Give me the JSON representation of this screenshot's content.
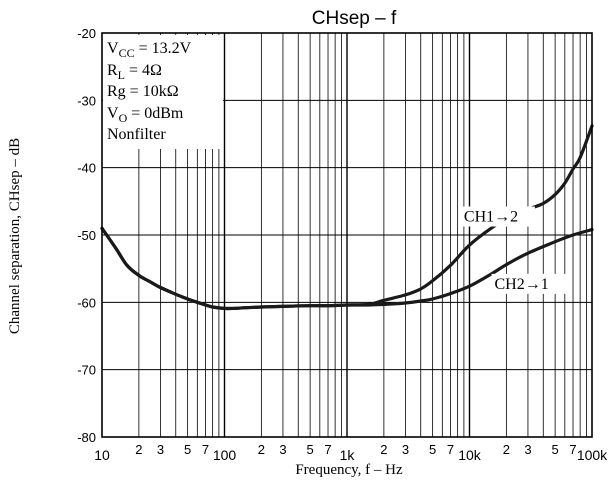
{
  "chart_data": {
    "type": "line",
    "title": "CHsep – f",
    "xlabel": "Frequency, f – Hz",
    "ylabel": "Channel separation, CHsep – dB",
    "x_scale": "log",
    "xlim": [
      10,
      100000
    ],
    "ylim": [
      -80,
      -20
    ],
    "grid": true,
    "x_tick_labels": [
      {
        "v": 10,
        "t": "10"
      },
      {
        "v": 20,
        "t": "2"
      },
      {
        "v": 30,
        "t": "3"
      },
      {
        "v": 50,
        "t": "5"
      },
      {
        "v": 70,
        "t": "7"
      },
      {
        "v": 100,
        "t": "100"
      },
      {
        "v": 200,
        "t": "2"
      },
      {
        "v": 300,
        "t": "3"
      },
      {
        "v": 500,
        "t": "5"
      },
      {
        "v": 700,
        "t": "7"
      },
      {
        "v": 1000,
        "t": "1k"
      },
      {
        "v": 2000,
        "t": "2"
      },
      {
        "v": 3000,
        "t": "3"
      },
      {
        "v": 5000,
        "t": "5"
      },
      {
        "v": 7000,
        "t": "7"
      },
      {
        "v": 10000,
        "t": "10k"
      },
      {
        "v": 20000,
        "t": "2"
      },
      {
        "v": 30000,
        "t": "3"
      },
      {
        "v": 50000,
        "t": "5"
      },
      {
        "v": 70000,
        "t": "7"
      },
      {
        "v": 100000,
        "t": "100k"
      }
    ],
    "y_tick_labels": [
      {
        "v": -20,
        "t": "-20"
      },
      {
        "v": -30,
        "t": "-30"
      },
      {
        "v": -40,
        "t": "-40"
      },
      {
        "v": -50,
        "t": "-50"
      },
      {
        "v": -60,
        "t": "-60"
      },
      {
        "v": -70,
        "t": "-70"
      },
      {
        "v": -80,
        "t": "-80"
      }
    ],
    "conditions": {
      "vcc": {
        "base": "V",
        "sub": "CC",
        "rest": " = 13.2V"
      },
      "rl": {
        "base": "R",
        "sub": "L",
        "rest": " = 4Ω"
      },
      "rg": {
        "base": "Rg",
        "sub": "",
        "rest": " = 10kΩ"
      },
      "vo": {
        "base": "V",
        "sub": "O",
        "rest": " = 0dBm"
      },
      "filter": {
        "base": "Nonfilter",
        "sub": "",
        "rest": ""
      }
    },
    "series": [
      {
        "name": "CH1→2",
        "label_at": {
          "x": 9000,
          "y": -48
        },
        "x": [
          10,
          13,
          16,
          20,
          25,
          30,
          40,
          50,
          60,
          70,
          80,
          100,
          120,
          150,
          200,
          300,
          500,
          700,
          1000,
          1500,
          2000,
          3000,
          4000,
          5000,
          7000,
          10000,
          15000,
          20000,
          30000,
          40000,
          50000,
          60000,
          70000,
          80000,
          100000
        ],
        "y": [
          -49,
          -52,
          -54.5,
          -56,
          -57,
          -57.8,
          -58.8,
          -59.5,
          -60,
          -60.4,
          -60.7,
          -60.9,
          -60.9,
          -60.8,
          -60.7,
          -60.6,
          -60.5,
          -60.5,
          -60.4,
          -60.3,
          -59.7,
          -58.9,
          -58,
          -56.8,
          -54.5,
          -51.5,
          -49,
          -47.6,
          -46.2,
          -45.3,
          -44,
          -42.3,
          -40.2,
          -38.5,
          -33.8
        ]
      },
      {
        "name": "CH2→1",
        "label_at": {
          "x": 16000,
          "y": -58
        },
        "x": [
          10,
          13,
          16,
          20,
          25,
          30,
          40,
          50,
          60,
          70,
          80,
          100,
          120,
          150,
          200,
          300,
          500,
          700,
          1000,
          1500,
          2000,
          3000,
          4000,
          5000,
          7000,
          10000,
          15000,
          20000,
          30000,
          50000,
          70000,
          100000
        ],
        "y": [
          -49,
          -52,
          -54.5,
          -56,
          -57,
          -57.8,
          -58.8,
          -59.5,
          -60,
          -60.4,
          -60.7,
          -60.9,
          -60.9,
          -60.8,
          -60.7,
          -60.6,
          -60.5,
          -60.5,
          -60.4,
          -60.4,
          -60.3,
          -60.1,
          -59.8,
          -59.5,
          -58.7,
          -57.6,
          -55.8,
          -54.4,
          -52.7,
          -51,
          -50,
          -49.2
        ]
      }
    ]
  }
}
